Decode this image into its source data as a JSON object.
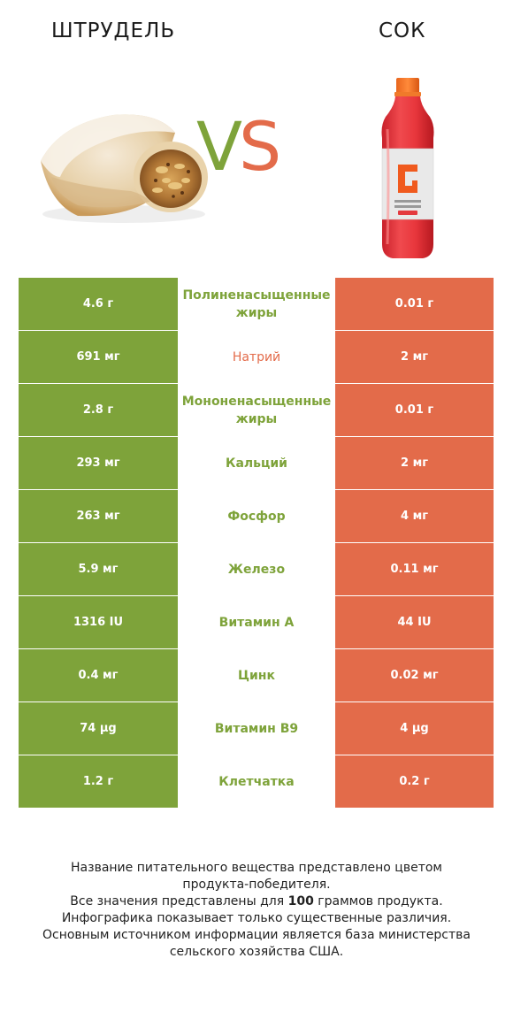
{
  "header": {
    "left_title": "ШТРУДЕЛЬ",
    "right_title": "СОК",
    "vs_v": "V",
    "vs_s": "S"
  },
  "colors": {
    "winner_left": "#7ea33a",
    "winner_right": "#e36b4a"
  },
  "rows": [
    {
      "left": "4.6 г",
      "name": "Полиненасыщенные жиры",
      "right": "0.01 г",
      "winner": "left"
    },
    {
      "left": "691 мг",
      "name": "Натрий",
      "right": "2 мг",
      "winner": "right"
    },
    {
      "left": "2.8 г",
      "name": "Мононенасыщенные жиры",
      "right": "0.01 г",
      "winner": "left"
    },
    {
      "left": "293 мг",
      "name": "Кальций",
      "right": "2 мг",
      "winner": "left"
    },
    {
      "left": "263 мг",
      "name": "Фосфор",
      "right": "4 мг",
      "winner": "left"
    },
    {
      "left": "5.9 мг",
      "name": "Железо",
      "right": "0.11 мг",
      "winner": "left"
    },
    {
      "left": "1316 IU",
      "name": "Витамин A",
      "right": "44 IU",
      "winner": "left"
    },
    {
      "left": "0.4 мг",
      "name": "Цинк",
      "right": "0.02 мг",
      "winner": "left"
    },
    {
      "left": "74 µg",
      "name": "Витамин B9",
      "right": "4 µg",
      "winner": "left"
    },
    {
      "left": "1.2 г",
      "name": "Клетчатка",
      "right": "0.2 г",
      "winner": "left"
    }
  ],
  "footer": {
    "line1": "Название питательного вещества представлено цветом",
    "line2": "продукта-победителя.",
    "line3_pre": "Все значения представлены для ",
    "line3_bold": "100",
    "line3_post": " граммов продукта.",
    "line4": "Инфографика показывает только существенные различия.",
    "line5": "Основным источником информации является база министерства",
    "line6": "сельского хозяйства США."
  }
}
